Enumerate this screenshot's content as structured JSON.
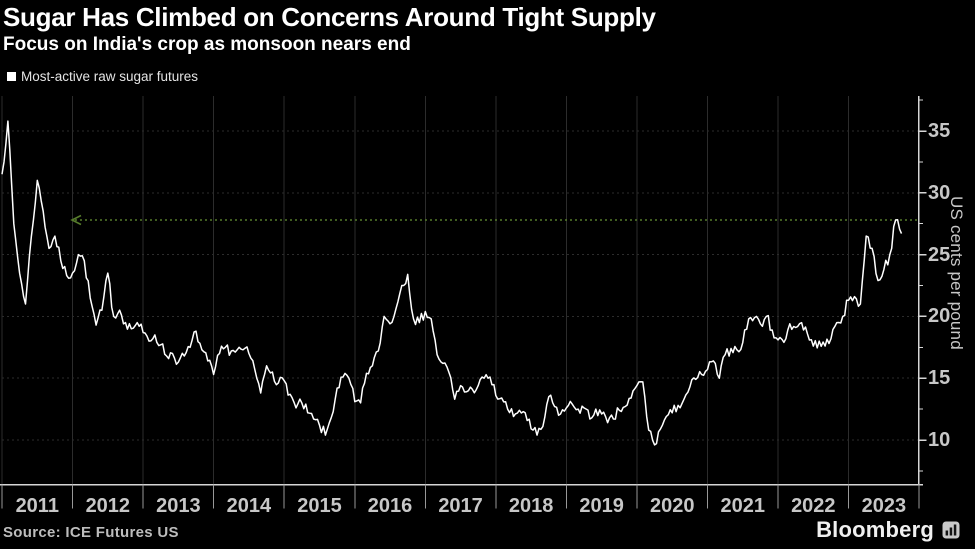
{
  "header": {
    "title": "Sugar Has Climbed on Concerns Around Tight Supply",
    "subtitle": "Focus on India's crop as monsoon nears end"
  },
  "legend": {
    "label": "Most-active raw sugar futures",
    "swatch_color": "#ffffff"
  },
  "source": {
    "label": "Source: ICE Futures US"
  },
  "branding": {
    "label": "Bloomberg",
    "logo_icon": "bar-chart-icon"
  },
  "colors": {
    "background": "#000000",
    "series_line": "#ffffff",
    "grid": "#2c2c2c",
    "axis": "#d6d6d6",
    "x_tick": "#989898",
    "tick_label": "#c7c7c7",
    "annotation_green": "#567c2b"
  },
  "chart_data": {
    "type": "line",
    "title": "Sugar Has Climbed on Concerns Around Tight Supply",
    "subtitle": "Focus on India's crop as monsoon nears end",
    "xlabel": "",
    "ylabel": "US cents per pound",
    "x_tick_labels": [
      "2011",
      "2012",
      "2013",
      "2014",
      "2015",
      "2016",
      "2017",
      "2018",
      "2019",
      "2020",
      "2021",
      "2022",
      "2023"
    ],
    "y_ticks": [
      10,
      15,
      20,
      25,
      30,
      35
    ],
    "y_minor_ticks": [
      7.5,
      12.5,
      17.5,
      22.5,
      27.5,
      32.5,
      37.5
    ],
    "ylim": [
      6.4,
      37.8
    ],
    "xlim": [
      2011,
      2024
    ],
    "grid": true,
    "legend_position": "top-left",
    "annotation": {
      "type": "horizontal-dotted-arrow",
      "value": 27.8,
      "direction": "left",
      "color": "#567c2b",
      "meaning": "current price level traced back across history"
    },
    "series": [
      {
        "name": "Most-active raw sugar futures",
        "unit": "US cents per pound",
        "frequency": "monthly",
        "start": "2011-01",
        "end": "2023-09 (latest)",
        "values": [
          31.5,
          35.8,
          27.5,
          23.5,
          21.0,
          26.5,
          31.0,
          28.5,
          25.5,
          26.5,
          24.5,
          23.3,
          23.5,
          25.0,
          24.5,
          21.5,
          19.3,
          20.5,
          23.5,
          20.0,
          20.5,
          19.5,
          19.0,
          19.5,
          18.7,
          18.0,
          18.5,
          17.7,
          16.8,
          17.0,
          16.3,
          16.8,
          17.5,
          18.8,
          17.3,
          16.4,
          15.3,
          17.0,
          17.5,
          17.2,
          17.3,
          17.3,
          17.0,
          15.7,
          13.8,
          16.0,
          15.5,
          14.6,
          14.8,
          13.7,
          12.6,
          13.0,
          12.2,
          11.7,
          11.2,
          10.4,
          11.8,
          14.2,
          15.1,
          15.0,
          13.1,
          13.0,
          15.4,
          16.0,
          17.2,
          20.0,
          19.4,
          20.6,
          22.5,
          23.4,
          19.8,
          19.5,
          20.4,
          19.8,
          16.9,
          16.2,
          15.5,
          13.3,
          14.4,
          13.9,
          14.1,
          14.4,
          15.0,
          15.1,
          13.6,
          13.4,
          12.5,
          11.9,
          12.4,
          12.2,
          10.9,
          10.4,
          11.1,
          13.5,
          12.7,
          12.1,
          12.6,
          12.9,
          12.5,
          12.6,
          11.7,
          12.5,
          12.1,
          11.4,
          11.7,
          12.4,
          12.7,
          13.4,
          14.4,
          14.7,
          10.8,
          9.6,
          10.9,
          11.9,
          12.2,
          12.8,
          13.3,
          14.3,
          14.9,
          15.3,
          15.7,
          16.4,
          15.0,
          16.9,
          17.4,
          17.3,
          17.9,
          19.8,
          19.9,
          19.4,
          20.0,
          18.9,
          18.1,
          17.9,
          19.4,
          19.1,
          19.5,
          18.6,
          17.6,
          18.0,
          17.6,
          18.2,
          19.5,
          20.0,
          21.3,
          21.6,
          21.0,
          26.5,
          25.5,
          22.9,
          23.8,
          25.0,
          27.8,
          26.7
        ]
      }
    ]
  }
}
